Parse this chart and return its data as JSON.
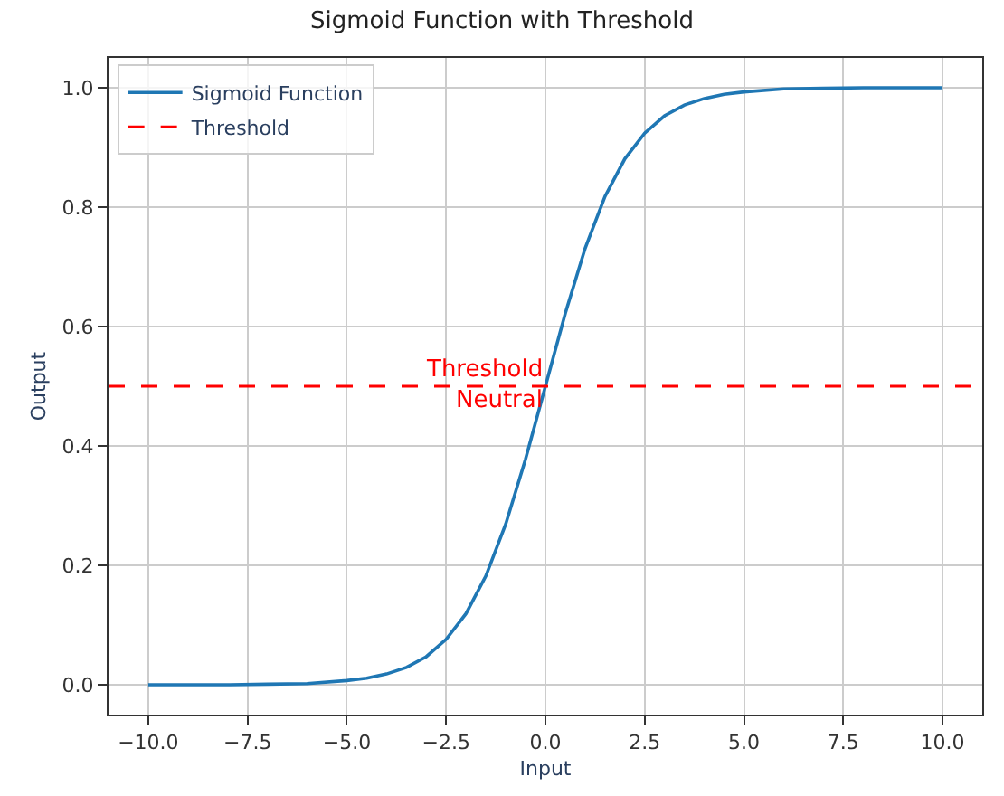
{
  "chart_data": {
    "type": "line",
    "title": "Sigmoid Function with Threshold",
    "xlabel": "Input",
    "ylabel": "Output",
    "x": [
      -10,
      -9,
      -8,
      -7,
      -6,
      -5,
      -4.5,
      -4,
      -3.5,
      -3,
      -2.5,
      -2,
      -1.5,
      -1,
      -0.5,
      0,
      0.5,
      1,
      1.5,
      2,
      2.5,
      3,
      3.5,
      4,
      4.5,
      5,
      6,
      7,
      8,
      9,
      10
    ],
    "series": [
      {
        "name": "Sigmoid Function",
        "color": "#1f77b4",
        "values": [
          0.0,
          0.0,
          0.0,
          0.001,
          0.002,
          0.007,
          0.011,
          0.018,
          0.029,
          0.047,
          0.076,
          0.119,
          0.182,
          0.269,
          0.378,
          0.5,
          0.622,
          0.731,
          0.818,
          0.881,
          0.924,
          0.953,
          0.971,
          0.982,
          0.989,
          0.993,
          0.998,
          0.999,
          1.0,
          1.0,
          1.0
        ]
      }
    ],
    "ref_lines": [
      {
        "axis": "y",
        "value": 0.5,
        "label": "Threshold",
        "color": "#ff0000",
        "line_style": "dashed"
      }
    ],
    "annotations": [
      {
        "text": "Threshold",
        "x": 0,
        "y": 0.5
      },
      {
        "text": "Neutral",
        "x": 0,
        "y": 0.5
      }
    ],
    "xlim": [
      -11,
      11
    ],
    "xticks": [
      {
        "value": -10,
        "label": "−10.0"
      },
      {
        "value": -7.5,
        "label": "−7.5"
      },
      {
        "value": -5,
        "label": "−5.0"
      },
      {
        "value": -2.5,
        "label": "−2.5"
      },
      {
        "value": 0,
        "label": "0.0"
      },
      {
        "value": 2.5,
        "label": "2.5"
      },
      {
        "value": 5,
        "label": "5.0"
      },
      {
        "value": 7.5,
        "label": "7.5"
      },
      {
        "value": 10,
        "label": "10.0"
      }
    ],
    "ylim": [
      -0.05,
      1.05
    ],
    "yticks": [
      {
        "value": 0,
        "label": "0.0"
      },
      {
        "value": 0.2,
        "label": "0.2"
      },
      {
        "value": 0.4,
        "label": "0.4"
      },
      {
        "value": 0.6,
        "label": "0.6"
      },
      {
        "value": 0.8,
        "label": "0.8"
      },
      {
        "value": 1,
        "label": "1.0"
      }
    ],
    "grid": true,
    "legend": "top left",
    "line_style": "solid",
    "marker": "none"
  }
}
